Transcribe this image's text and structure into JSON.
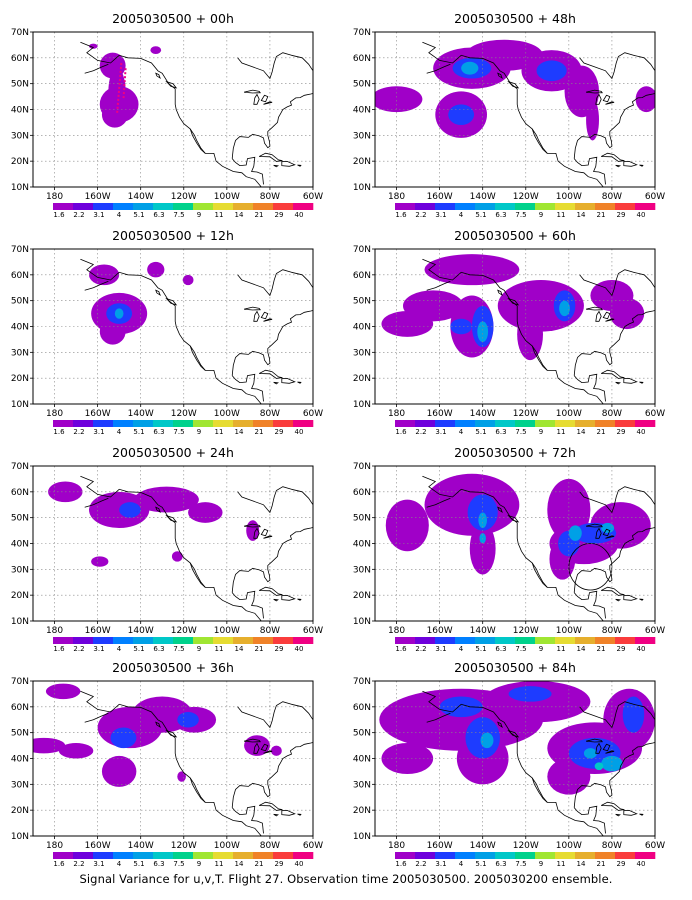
{
  "panels": [
    {
      "title": "2005030500 + 00h"
    },
    {
      "title": "2005030500 + 48h"
    },
    {
      "title": "2005030500 + 12h"
    },
    {
      "title": "2005030500 + 60h"
    },
    {
      "title": "2005030500 + 24h"
    },
    {
      "title": "2005030500 + 72h"
    },
    {
      "title": "2005030500 + 36h"
    },
    {
      "title": "2005030500 + 84h"
    }
  ],
  "lat_labels": [
    "70N",
    "60N",
    "50N",
    "40N",
    "30N",
    "20N",
    "10N"
  ],
  "lon_labels": [
    "180",
    "160W",
    "140W",
    "120W",
    "100W",
    "80W",
    "60W"
  ],
  "colorbar": {
    "labels": [
      "1.6",
      "2.2",
      "3.1",
      "4",
      "5.1",
      "6.3",
      "7.5",
      "9",
      "11",
      "14",
      "21",
      "29",
      "40"
    ],
    "colors": [
      "#a000c8",
      "#6e00dc",
      "#1e3cff",
      "#0080ff",
      "#00a0e6",
      "#00c8c8",
      "#00d28c",
      "#a0e632",
      "#e6dc32",
      "#e6af2d",
      "#f08228",
      "#fa3c3c",
      "#f00082"
    ]
  },
  "caption": "Signal Variance for u,v,T. Flight 27. Observation time 2005030500. 2005030200 ensemble."
}
